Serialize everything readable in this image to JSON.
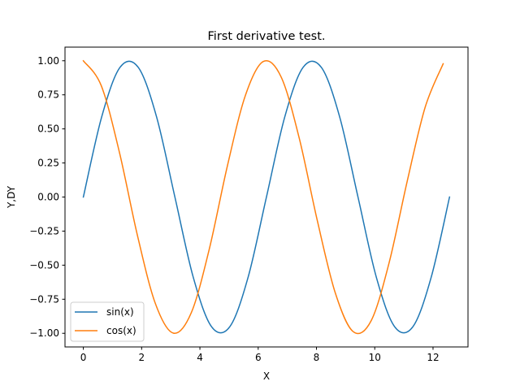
{
  "chart_data": {
    "type": "line",
    "title": "First derivative test.",
    "xlabel": "X",
    "ylabel": "Y,DY",
    "xlim": [
      -0.63,
      13.2
    ],
    "ylim": [
      -1.1,
      1.1
    ],
    "xticks": [
      0,
      2,
      4,
      6,
      8,
      10,
      12
    ],
    "yticks": [
      -1.0,
      -0.75,
      -0.5,
      -0.25,
      0.0,
      0.25,
      0.5,
      0.75,
      1.0
    ],
    "xtick_labels": [
      "0",
      "2",
      "4",
      "6",
      "8",
      "10",
      "12"
    ],
    "ytick_labels": [
      "−1.00",
      "−0.75",
      "−0.50",
      "−0.25",
      "0.00",
      "0.25",
      "0.50",
      "0.75",
      "1.00"
    ],
    "grid": false,
    "legend_position": "lower-left",
    "series": [
      {
        "name": "sin(x)",
        "color": "#1f77b4",
        "x": [
          0,
          0.6283,
          1.2566,
          1.885,
          2.5133,
          3.1416,
          3.7699,
          4.3982,
          5.0265,
          5.6549,
          6.2832,
          6.9115,
          7.5398,
          8.1681,
          8.7965,
          9.4248,
          10.0531,
          10.6814,
          11.3097,
          11.938,
          12.5664
        ],
        "y": [
          0,
          0.5878,
          0.9511,
          0.9511,
          0.5878,
          0,
          -0.5878,
          -0.9511,
          -0.9511,
          -0.5878,
          0,
          0.5878,
          0.9511,
          0.9511,
          0.5878,
          0,
          -0.5878,
          -0.9511,
          -0.9511,
          -0.5878,
          0
        ]
      },
      {
        "name": "cos(x)",
        "color": "#ff7f0e",
        "x": [
          0,
          0.6174,
          1.2348,
          1.8522,
          2.4696,
          3.087,
          3.7044,
          4.3218,
          4.9392,
          5.5566,
          6.174,
          6.7914,
          7.4088,
          8.0262,
          8.6436,
          9.261,
          9.8784,
          10.4958,
          11.1132,
          11.7306,
          12.348
        ],
        "y": [
          1.0,
          0.8156,
          0.3306,
          -0.2781,
          -0.7805,
          -0.9986,
          -0.8485,
          -0.3818,
          0.2249,
          0.7429,
          0.9945,
          0.8792,
          0.4318,
          -0.1705,
          -0.7022,
          -0.9877,
          -0.9069,
          -0.4799,
          0.1152,
          0.6594,
          0.9781
        ]
      }
    ]
  }
}
